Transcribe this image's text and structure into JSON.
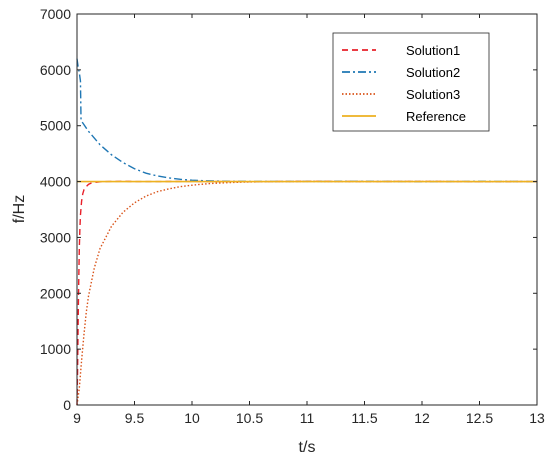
{
  "chart_data": {
    "type": "line",
    "xlabel": "t/s",
    "ylabel": "f/Hz",
    "xlim": [
      9,
      13
    ],
    "ylim": [
      0,
      7000
    ],
    "xticks": [
      "9",
      "9.5",
      "10",
      "10.5",
      "11",
      "11.5",
      "12",
      "12.5",
      "13"
    ],
    "yticks": [
      "0",
      "1000",
      "2000",
      "3000",
      "4000",
      "5000",
      "6000",
      "7000"
    ],
    "grid": false,
    "legend_position": "top-right",
    "series": [
      {
        "name": "Solution1",
        "color": "#e8202a",
        "style": "dashed",
        "x": [
          9.0,
          9.005,
          9.01,
          9.015,
          9.02,
          9.025,
          9.03,
          9.04,
          9.05,
          9.06,
          9.08,
          9.1,
          9.12,
          9.15,
          9.2,
          9.25,
          9.3,
          9.4,
          9.5,
          10.0,
          10.5,
          11.0,
          11.5,
          12.0,
          12.5,
          13.0
        ],
        "y": [
          0,
          600,
          1500,
          2200,
          2800,
          3150,
          3400,
          3650,
          3780,
          3850,
          3910,
          3950,
          3970,
          3985,
          3995,
          4000,
          4002,
          4005,
          4000,
          4002,
          3998,
          4005,
          4000,
          4003,
          3998,
          4000
        ]
      },
      {
        "name": "Solution2",
        "color": "#1f77b4",
        "style": "dashdot",
        "x": [
          9.0,
          9.01,
          9.02,
          9.03,
          9.035,
          9.05,
          9.1,
          9.2,
          9.3,
          9.4,
          9.5,
          9.6,
          9.7,
          9.8,
          9.9,
          10.0,
          10.1,
          10.2,
          10.3,
          10.5,
          11.0,
          11.5,
          12.0,
          12.5,
          13.0
        ],
        "y": [
          6200,
          6050,
          5950,
          5800,
          5100,
          5050,
          4900,
          4660,
          4480,
          4340,
          4230,
          4150,
          4100,
          4065,
          4040,
          4025,
          4015,
          4010,
          4006,
          4003,
          4002,
          4005,
          3998,
          4004,
          4000
        ]
      },
      {
        "name": "Solution3",
        "color": "#d95319",
        "style": "dotted",
        "x": [
          9.0,
          9.02,
          9.04,
          9.06,
          9.08,
          9.1,
          9.15,
          9.2,
          9.3,
          9.4,
          9.5,
          9.6,
          9.7,
          9.8,
          9.9,
          10.0,
          10.1,
          10.2,
          10.3,
          10.4,
          10.5,
          10.6,
          10.8,
          11.0,
          11.5,
          12.0,
          12.5,
          13.0
        ],
        "y": [
          0,
          300,
          800,
          1250,
          1650,
          1950,
          2450,
          2800,
          3200,
          3450,
          3620,
          3740,
          3820,
          3870,
          3910,
          3935,
          3955,
          3970,
          3980,
          3988,
          3993,
          3996,
          4000,
          4002,
          4000,
          4003,
          3998,
          4000
        ]
      },
      {
        "name": "Reference",
        "color": "#edb120",
        "style": "solid",
        "x": [
          9.0,
          13.0
        ],
        "y": [
          4000,
          4000
        ]
      }
    ]
  }
}
